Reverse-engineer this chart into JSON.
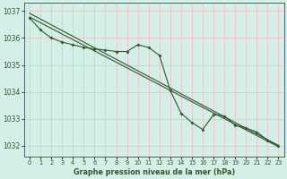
{
  "title": "Graphe pression niveau de la mer (hPa)",
  "bg_color": "#d4eee8",
  "grid_color": "#e8c8c8",
  "line_color": "#2d5a27",
  "tick_color": "#2d5a27",
  "xlim": [
    -0.5,
    23.5
  ],
  "ylim": [
    1031.6,
    1037.3
  ],
  "yticks": [
    1032,
    1033,
    1034,
    1035,
    1036,
    1037
  ],
  "xticks": [
    0,
    1,
    2,
    3,
    4,
    5,
    6,
    7,
    8,
    9,
    10,
    11,
    12,
    13,
    14,
    15,
    16,
    17,
    18,
    19,
    20,
    21,
    22,
    23
  ],
  "data_x": [
    0,
    1,
    2,
    3,
    4,
    5,
    6,
    7,
    8,
    9,
    10,
    11,
    12,
    13,
    14,
    15,
    16,
    17,
    18,
    19,
    20,
    21,
    22,
    23
  ],
  "data_y": [
    1036.75,
    1036.3,
    1036.0,
    1035.85,
    1035.75,
    1035.65,
    1035.6,
    1035.55,
    1035.5,
    1035.5,
    1035.75,
    1035.65,
    1035.35,
    1034.05,
    1033.2,
    1032.85,
    1032.6,
    1033.15,
    1033.1,
    1032.75,
    1032.65,
    1032.5,
    1032.2,
    1032.0
  ],
  "trend1_x": [
    0,
    23
  ],
  "trend1_y": [
    1036.92,
    1032.0
  ],
  "trend2_x": [
    0,
    23
  ],
  "trend2_y": [
    1036.78,
    1031.95
  ]
}
